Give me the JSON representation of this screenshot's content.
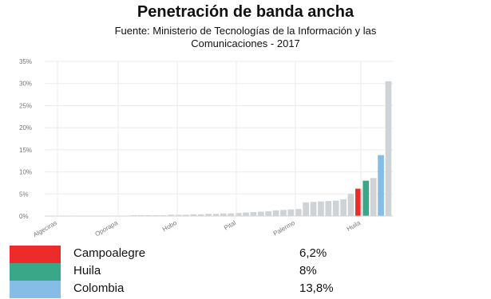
{
  "title": "Penetración de banda ancha",
  "subtitle_line1": "Fuente: Ministerio de Tecnologías de la Información y las",
  "subtitle_line2": "Comunicaciones - 2017",
  "colors": {
    "default_bar": "#cfd3d6",
    "highlight_red": "#ee2b2b",
    "highlight_green": "#3aa888",
    "highlight_blue": "#85bde6",
    "grid": "#ebebeb",
    "tick_text": "#777777"
  },
  "chart_data": {
    "type": "bar",
    "grid": true,
    "ylim": [
      0,
      35
    ],
    "y_ticks": [
      "0%",
      "5%",
      "10%",
      "15%",
      "20%",
      "25%",
      "30%",
      "35%"
    ],
    "x_tick_labels": [
      "Algeciras",
      "Oporapa",
      "Hobo",
      "Pital",
      "Palermo",
      "Huila"
    ],
    "values": [
      0.1,
      0.1,
      0.1,
      0.1,
      0.1,
      0.1,
      0.1,
      0.1,
      0.1,
      0.1,
      0.1,
      0.2,
      0.2,
      0.2,
      0.2,
      0.2,
      0.3,
      0.3,
      0.3,
      0.4,
      0.4,
      0.5,
      0.5,
      0.6,
      0.6,
      0.7,
      0.8,
      0.9,
      1.0,
      1.1,
      1.3,
      1.4,
      1.5,
      1.6,
      3.1,
      3.2,
      3.3,
      3.4,
      3.5,
      3.8,
      5.0,
      6.2,
      8.0,
      8.6,
      13.8,
      30.5
    ],
    "highlights": [
      {
        "index": 41,
        "color": "#ee2b2b"
      },
      {
        "index": 42,
        "color": "#3aa888"
      },
      {
        "index": 44,
        "color": "#85bde6"
      }
    ]
  },
  "legend": [
    {
      "label": "Campoalegre",
      "value": "6,2%",
      "color": "#ee2b2b"
    },
    {
      "label": "Huila",
      "value": "8%",
      "color": "#3aa888"
    },
    {
      "label": "Colombia",
      "value": "13,8%",
      "color": "#85bde6"
    }
  ]
}
